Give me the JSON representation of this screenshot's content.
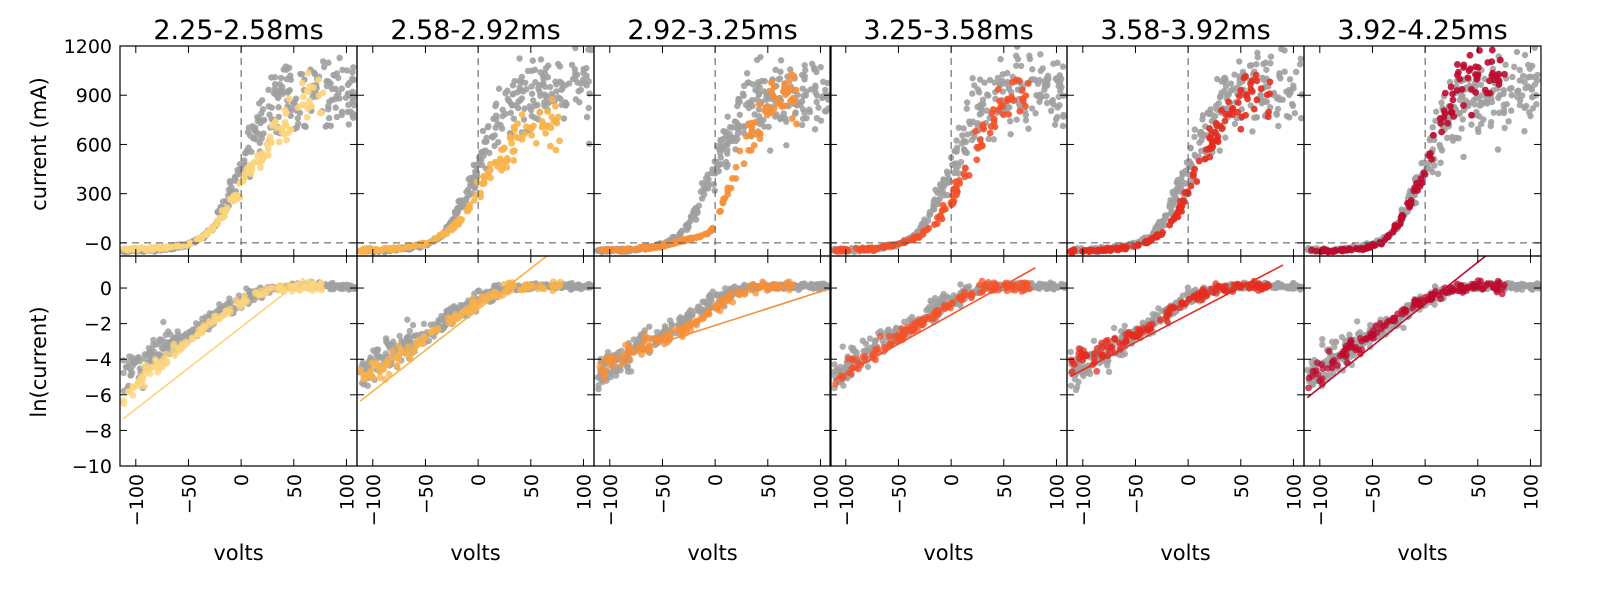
{
  "figure": {
    "xlabel": "volts",
    "top_ylabel": "current (mA)",
    "bottom_ylabel": "ln(current)"
  },
  "colors": {
    "background_points": "#a0a0a0",
    "axes": "#000000",
    "dashed_guides": "#555555"
  },
  "chart_data": {
    "type": "scatter",
    "layout": "2 rows x 6 columns of panels, shared axes",
    "x_axis": {
      "label": "volts",
      "lim": [
        -115,
        110
      ],
      "ticks": [
        -100,
        -50,
        0,
        50,
        100
      ],
      "tick_labels": [
        "−100",
        "−50",
        "0",
        "50",
        "100"
      ],
      "tick_rotation": "vertical"
    },
    "top_y_axis": {
      "label": "current (mA)",
      "lim": [
        -80,
        1200
      ],
      "ticks": [
        0,
        300,
        600,
        900,
        1200
      ],
      "tick_labels": [
        "−0",
        "300",
        "600",
        "900",
        "1200"
      ],
      "guides": {
        "x": 0,
        "y": 0,
        "style": "dashed"
      }
    },
    "bottom_y_axis": {
      "label": "ln(current)",
      "lim": [
        -10,
        1.8
      ],
      "ticks": [
        -10,
        -8,
        -6,
        -4,
        -2,
        0
      ],
      "tick_labels": [
        "−10",
        "−8",
        "−6",
        "−4",
        "−2",
        "0"
      ]
    },
    "background_series": {
      "description": "all trials (grey), shown in every panel",
      "top_curve": [
        [
          -110,
          -45
        ],
        [
          -90,
          -45
        ],
        [
          -70,
          -35
        ],
        [
          -50,
          -10
        ],
        [
          -35,
          40
        ],
        [
          -25,
          120
        ],
        [
          -15,
          240
        ],
        [
          -5,
          380
        ],
        [
          5,
          520
        ],
        [
          15,
          680
        ],
        [
          25,
          800
        ],
        [
          40,
          880
        ],
        [
          60,
          920
        ],
        [
          80,
          930
        ],
        [
          100,
          930
        ]
      ],
      "bottom_curve": [
        [
          -110,
          -4.8
        ],
        [
          -90,
          -4.0
        ],
        [
          -70,
          -3.3
        ],
        [
          -50,
          -2.6
        ],
        [
          -30,
          -1.8
        ],
        [
          -10,
          -1.0
        ],
        [
          10,
          -0.4
        ],
        [
          30,
          0.0
        ],
        [
          50,
          0.1
        ],
        [
          80,
          0.1
        ],
        [
          105,
          0.1
        ]
      ]
    },
    "panels": [
      {
        "title": "2.25-2.58ms",
        "color": "#fcd47b",
        "top_curve": [
          [
            -110,
            -40
          ],
          [
            -80,
            -35
          ],
          [
            -50,
            -10
          ],
          [
            -30,
            60
          ],
          [
            -15,
            200
          ],
          [
            0,
            360
          ],
          [
            15,
            500
          ],
          [
            30,
            640
          ],
          [
            45,
            750
          ],
          [
            60,
            850
          ],
          [
            75,
            920
          ]
        ],
        "bottom_points_curve": [
          [
            -110,
            -6.0
          ],
          [
            -90,
            -4.8
          ],
          [
            -70,
            -4.0
          ],
          [
            -50,
            -3.0
          ],
          [
            -30,
            -2.0
          ],
          [
            -10,
            -1.2
          ],
          [
            10,
            -0.5
          ],
          [
            30,
            -0.1
          ],
          [
            50,
            0.0
          ],
          [
            70,
            0.1
          ]
        ],
        "fit_line": {
          "slope": 0.046,
          "intercept": -2.2,
          "x_range": [
            -112,
            60
          ]
        }
      },
      {
        "title": "2.58-2.92ms",
        "color": "#f8b24a",
        "top_curve": [
          [
            -110,
            -45
          ],
          [
            -80,
            -35
          ],
          [
            -50,
            -5
          ],
          [
            -30,
            60
          ],
          [
            -15,
            150
          ],
          [
            0,
            300
          ],
          [
            15,
            480
          ],
          [
            30,
            600
          ],
          [
            45,
            680
          ],
          [
            60,
            720
          ]
        ],
        "bottom_points_curve": [
          [
            -110,
            -5.0
          ],
          [
            -90,
            -4.4
          ],
          [
            -70,
            -3.6
          ],
          [
            -50,
            -2.8
          ],
          [
            -30,
            -2.0
          ],
          [
            -10,
            -1.2
          ],
          [
            10,
            -0.5
          ],
          [
            30,
            0.0
          ],
          [
            50,
            0.1
          ],
          [
            70,
            0.1
          ]
        ],
        "fit_line": {
          "slope": 0.046,
          "intercept": -1.2,
          "x_range": [
            -112,
            75
          ]
        }
      },
      {
        "title": "2.92-3.25ms",
        "color": "#f68f38",
        "top_curve": [
          [
            -110,
            -45
          ],
          [
            -80,
            -40
          ],
          [
            -50,
            -20
          ],
          [
            -25,
            20
          ],
          [
            -5,
            60
          ],
          [
            5,
            200
          ],
          [
            15,
            400
          ],
          [
            30,
            600
          ],
          [
            45,
            760
          ],
          [
            60,
            880
          ]
        ],
        "bottom_points_curve": [
          [
            -110,
            -4.6
          ],
          [
            -90,
            -3.9
          ],
          [
            -70,
            -3.3
          ],
          [
            -50,
            -2.8
          ],
          [
            -30,
            -2.4
          ],
          [
            -10,
            -1.6
          ],
          [
            10,
            -0.6
          ],
          [
            30,
            -0.1
          ],
          [
            50,
            0.1
          ],
          [
            70,
            0.1
          ]
        ],
        "fit_line": {
          "slope": 0.019,
          "intercept": -2.1,
          "x_range": [
            -112,
            105
          ]
        }
      },
      {
        "title": "3.25-3.58ms",
        "color": "#f4512a",
        "top_curve": [
          [
            -110,
            -45
          ],
          [
            -80,
            -40
          ],
          [
            -50,
            -10
          ],
          [
            -30,
            40
          ],
          [
            -15,
            120
          ],
          [
            0,
            260
          ],
          [
            15,
            450
          ],
          [
            30,
            650
          ],
          [
            45,
            800
          ],
          [
            60,
            900
          ]
        ],
        "bottom_points_curve": [
          [
            -110,
            -5.0
          ],
          [
            -90,
            -4.3
          ],
          [
            -70,
            -3.5
          ],
          [
            -50,
            -2.7
          ],
          [
            -30,
            -2.0
          ],
          [
            -10,
            -1.2
          ],
          [
            10,
            -0.5
          ],
          [
            30,
            0.0
          ],
          [
            50,
            0.1
          ],
          [
            70,
            0.1
          ]
        ],
        "fit_line": {
          "slope": 0.033,
          "intercept": -1.5,
          "x_range": [
            -112,
            80
          ]
        }
      },
      {
        "title": "3.58-3.92ms",
        "color": "#e52c1f",
        "top_curve": [
          [
            -110,
            -50
          ],
          [
            -80,
            -45
          ],
          [
            -60,
            -30
          ],
          [
            -40,
            0
          ],
          [
            -20,
            80
          ],
          [
            -5,
            240
          ],
          [
            10,
            480
          ],
          [
            25,
            680
          ],
          [
            40,
            820
          ],
          [
            60,
            900
          ]
        ],
        "bottom_points_curve": [
          [
            -110,
            -4.2
          ],
          [
            -90,
            -3.8
          ],
          [
            -70,
            -3.2
          ],
          [
            -50,
            -2.6
          ],
          [
            -30,
            -2.1
          ],
          [
            -10,
            -1.0
          ],
          [
            10,
            -0.4
          ],
          [
            30,
            0.0
          ],
          [
            50,
            0.1
          ],
          [
            70,
            0.1
          ]
        ],
        "fit_line": {
          "slope": 0.031,
          "intercept": -1.5,
          "x_range": [
            -112,
            90
          ]
        }
      },
      {
        "title": "3.92-4.25ms",
        "color": "#be0a2e",
        "top_curve": [
          [
            -110,
            -50
          ],
          [
            -80,
            -45
          ],
          [
            -60,
            -35
          ],
          [
            -40,
            0
          ],
          [
            -25,
            120
          ],
          [
            -10,
            300
          ],
          [
            5,
            560
          ],
          [
            20,
            800
          ],
          [
            35,
            950
          ],
          [
            50,
            1020
          ],
          [
            70,
            1050
          ]
        ],
        "bottom_points_curve": [
          [
            -110,
            -5.2
          ],
          [
            -90,
            -4.3
          ],
          [
            -70,
            -3.4
          ],
          [
            -50,
            -2.6
          ],
          [
            -30,
            -1.7
          ],
          [
            -10,
            -0.9
          ],
          [
            10,
            -0.3
          ],
          [
            30,
            0.0
          ],
          [
            50,
            0.1
          ],
          [
            70,
            0.1
          ]
        ],
        "fit_line": {
          "slope": 0.047,
          "intercept": -0.9,
          "x_range": [
            -112,
            60
          ]
        }
      }
    ]
  }
}
